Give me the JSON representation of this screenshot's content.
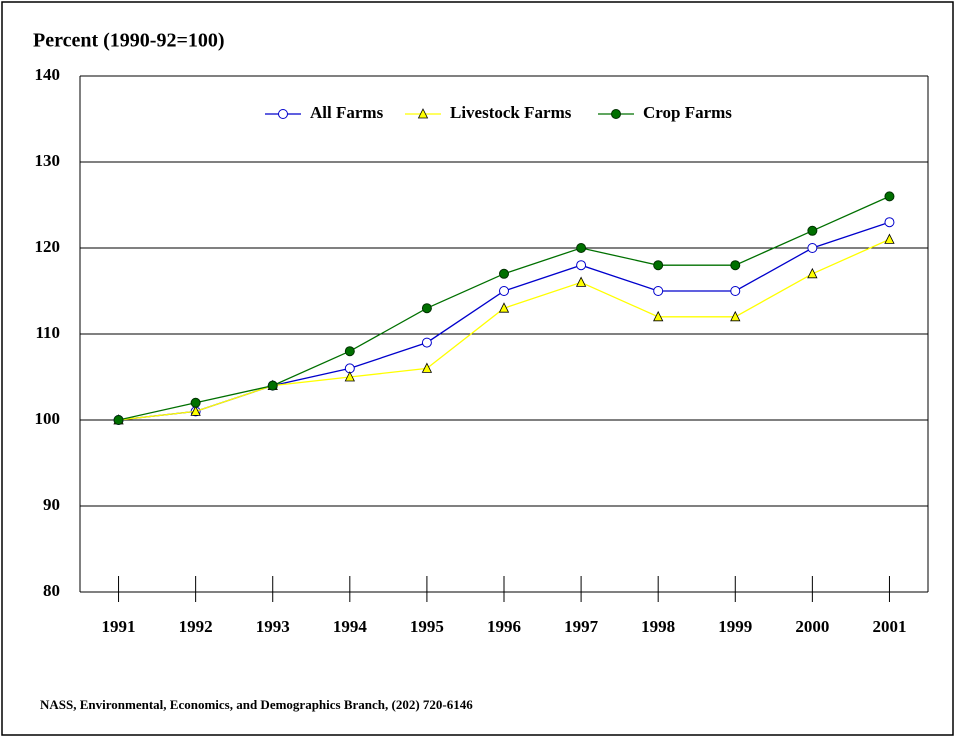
{
  "chart_data": {
    "type": "line",
    "title": "Percent (1990-92=100)",
    "note": "NASS, Environmental, Economics, and Demographics Branch, (202) 720-6146",
    "categories": [
      "1991",
      "1992",
      "1993",
      "1994",
      "1995",
      "1996",
      "1997",
      "1998",
      "1999",
      "2000",
      "2001"
    ],
    "series": [
      {
        "name": "All Farms",
        "color": "#0000cc",
        "marker": "circle",
        "values": [
          100,
          101,
          104,
          106,
          109,
          115,
          118,
          115,
          115,
          120,
          123
        ]
      },
      {
        "name": "Livestock Farms",
        "color": "#ffff00",
        "marker": "triangle",
        "values": [
          100,
          101,
          104,
          105,
          106,
          113,
          116,
          112,
          112,
          117,
          121
        ]
      },
      {
        "name": "Crop Farms",
        "color": "#007000",
        "marker": "dot",
        "values": [
          100,
          102,
          104,
          108,
          113,
          117,
          120,
          118,
          118,
          122,
          126
        ]
      }
    ],
    "ylim": [
      80,
      140
    ],
    "yticks": [
      80,
      90,
      100,
      110,
      120,
      130,
      140
    ],
    "grid": true,
    "legend": "top"
  }
}
